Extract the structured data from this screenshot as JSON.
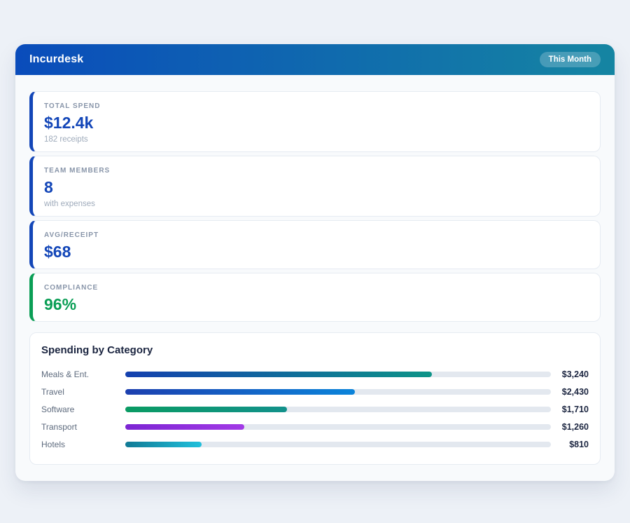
{
  "header": {
    "title": "Incurdesk",
    "badge": {
      "label": "This Month"
    }
  },
  "stats": [
    {
      "label": "TOTAL SPEND",
      "value": "$12.4k",
      "sub": "182 receipts",
      "accent": "#1346b8"
    },
    {
      "label": "TEAM MEMBERS",
      "value": "8",
      "sub": "with expenses",
      "accent": "#1346b8"
    },
    {
      "label": "AVG/RECEIPT",
      "value": "$68",
      "sub": "",
      "accent": "#1346b8"
    },
    {
      "label": "COMPLIANCE",
      "value": "96%",
      "sub": "",
      "accent": "#0a9e55"
    }
  ],
  "chart_data": {
    "type": "bar",
    "orientation": "horizontal",
    "title": "Spending by Category",
    "categories": [
      "Meals & Ent.",
      "Travel",
      "Software",
      "Transport",
      "Hotels"
    ],
    "values": [
      3240,
      2430,
      1710,
      1260,
      810
    ],
    "value_labels": [
      "$3,240",
      "$2,430",
      "$1,710",
      "$1,260",
      "$810"
    ],
    "xlim": [
      0,
      4500
    ],
    "percents": [
      72,
      54,
      38,
      28,
      18
    ],
    "grid": false,
    "legend": false,
    "gradients": [
      [
        "#1440af",
        "#0d9488"
      ],
      [
        "#1c3faf",
        "#0b84da"
      ],
      [
        "#0a9b63",
        "#12918b"
      ],
      [
        "#7c25d3",
        "#a23ae6"
      ],
      [
        "#117a95",
        "#20c0dc"
      ]
    ]
  },
  "colors": {
    "header_gradient": [
      "#0a4cbb",
      "#1585a2"
    ],
    "page_bg": "#edf1f7",
    "panel_bg": "#f8fafc",
    "track": "#e3e8ef",
    "blue": "#1346b8",
    "green": "#0a9e55"
  }
}
